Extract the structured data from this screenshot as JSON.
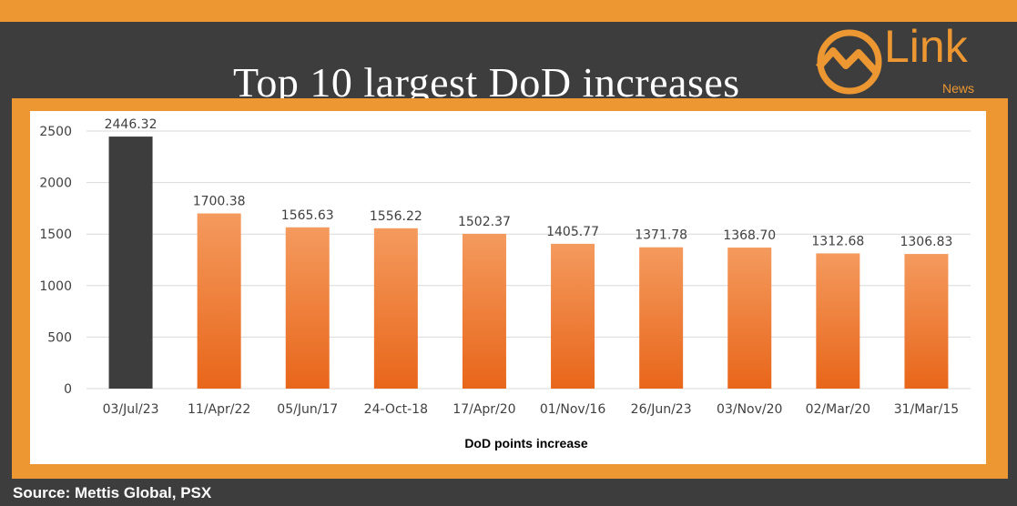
{
  "header": {
    "title": "Top 10 largest DoD increases"
  },
  "logo": {
    "word": "Link",
    "sub": "News",
    "color": "#ec9732"
  },
  "footer": {
    "source": "Source: Mettis Global, PSX"
  },
  "colors": {
    "frame": "#ec9732",
    "background": "#3d3d3d",
    "highlight_bar": "#3d3d3d",
    "bar_top": "#f49a5e",
    "bar_bottom": "#e8661a"
  },
  "chart_data": {
    "type": "bar",
    "categories": [
      "03/Jul/23",
      "11/Apr/22",
      "05/Jun/17",
      "24-Oct-18",
      "17/Apr/20",
      "01/Nov/16",
      "26/Jun/23",
      "03/Nov/20",
      "02/Mar/20",
      "31/Mar/15"
    ],
    "values": [
      2446.32,
      1700.38,
      1565.63,
      1556.22,
      1502.37,
      1405.77,
      1371.78,
      1368.7,
      1312.68,
      1306.83
    ],
    "data_labels": [
      "2446.32",
      "1700.38",
      "1565.63",
      "1556.22",
      "1502.37",
      "1405.77",
      "1371.78",
      "1368.70",
      "1312.68",
      "1306.83"
    ],
    "title": "Top 10 largest DoD increases",
    "xlabel": "DoD points increase",
    "ylabel": "",
    "ylim": [
      0,
      2500
    ],
    "yticks": [
      "0",
      "500",
      "1000",
      "1500",
      "2000",
      "2500"
    ],
    "ytick_values": [
      0,
      500,
      1000,
      1500,
      2000,
      2500
    ],
    "grid": true,
    "highlight_index": 0,
    "legend": "none"
  }
}
